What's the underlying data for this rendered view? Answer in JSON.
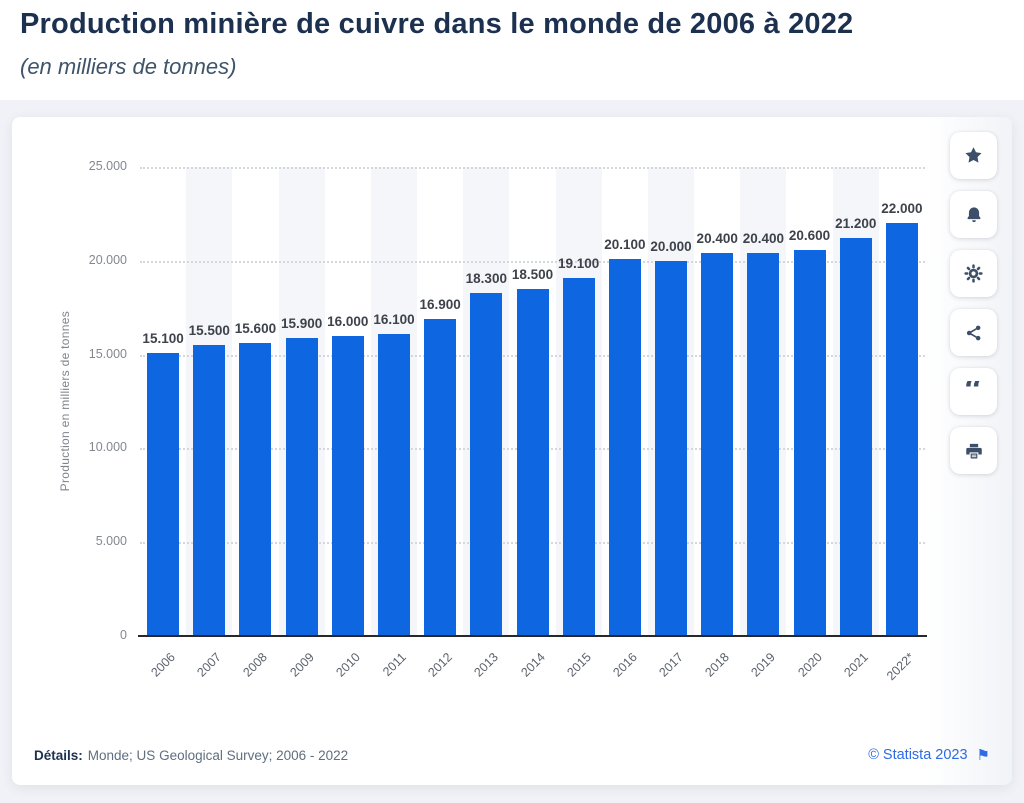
{
  "header": {
    "title": "Production minière de cuivre dans le monde de 2006 à 2022",
    "subtitle": "(en milliers de tonnes)"
  },
  "chart_data": {
    "type": "bar",
    "title": "Production minière de cuivre dans le monde de 2006 à 2022",
    "subtitle": "(en milliers de tonnes)",
    "categories": [
      "2006",
      "2007",
      "2008",
      "2009",
      "2010",
      "2011",
      "2012",
      "2013",
      "2014",
      "2015",
      "2016",
      "2017",
      "2018",
      "2019",
      "2020",
      "2021",
      "2022*"
    ],
    "values": [
      15100,
      15500,
      15600,
      15900,
      16000,
      16100,
      16900,
      18300,
      18500,
      19100,
      20100,
      20000,
      20400,
      20400,
      20600,
      21200,
      22000
    ],
    "value_labels": [
      "15.100",
      "15.500",
      "15.600",
      "15.900",
      "16.000",
      "16.100",
      "16.900",
      "18.300",
      "18.500",
      "19.100",
      "20.100",
      "20.000",
      "20.400",
      "20.400",
      "20.600",
      "21.200",
      "22.000"
    ],
    "xlabel": "",
    "ylabel": "Production en milliers de tonnes",
    "ylim": [
      0,
      25000
    ],
    "ytick_step": 5000,
    "ytick_labels": [
      "0",
      "5.000",
      "10.000",
      "15.000",
      "20.000",
      "25.000"
    ],
    "grid": "horizontal-dotted",
    "legend": "none",
    "bar_color": "#0e66e0",
    "stripe_color": "#f5f6f9"
  },
  "toolbar": {
    "buttons": [
      {
        "id": "favorite",
        "icon": "star-icon"
      },
      {
        "id": "alert",
        "icon": "bell-icon"
      },
      {
        "id": "settings",
        "icon": "gear-icon"
      },
      {
        "id": "share",
        "icon": "share-icon"
      },
      {
        "id": "cite",
        "icon": "quote-icon"
      },
      {
        "id": "print",
        "icon": "printer-icon"
      }
    ],
    "quote_glyph": "“"
  },
  "footer": {
    "details_label": "Détails:",
    "details_text": "Monde; US Geological Survey; 2006 - 2022",
    "credit": "© Statista 2023",
    "flag_glyph": "⚑"
  }
}
